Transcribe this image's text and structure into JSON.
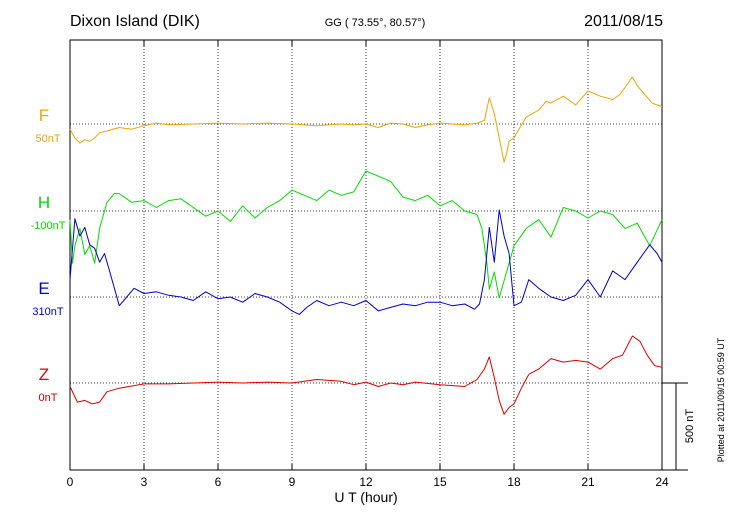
{
  "chart_data": {
    "type": "line",
    "title": "Dixon Island (DIK)",
    "subtitle": "GG ( 73.55°,  80.57°)",
    "date": "2011/08/15",
    "xlabel": "U T (hour)",
    "xlim": [
      0,
      24
    ],
    "xticks": [
      "0",
      "3",
      "6",
      "9",
      "12",
      "15",
      "18",
      "21",
      "24"
    ],
    "grid": true,
    "scale_bar_label": "500 nT",
    "scale_bar_nT": 500,
    "plotted_note": "Plotted at 2011/09/15 00:59 UT",
    "series": [
      {
        "name": "F",
        "baseline_label": "50nT",
        "color": "#f0a500",
        "x": [
          0,
          0.2,
          0.4,
          0.6,
          0.8,
          1.0,
          1.2,
          1.5,
          2.0,
          2.5,
          3.0,
          3.5,
          4.0,
          5.0,
          6.0,
          7.0,
          8.0,
          9.0,
          10.0,
          11.0,
          11.5,
          12.0,
          12.5,
          13.0,
          13.5,
          14.0,
          14.5,
          15.0,
          15.5,
          16.0,
          16.5,
          16.8,
          17.0,
          17.2,
          17.4,
          17.5,
          17.6,
          17.7,
          17.8,
          18.0,
          18.2,
          18.5,
          19.0,
          19.3,
          19.5,
          20.0,
          20.5,
          21.0,
          21.5,
          22.0,
          22.3,
          22.6,
          22.8,
          23.0,
          23.3,
          23.6,
          24.0
        ],
        "y": [
          -30,
          -80,
          -110,
          -90,
          -100,
          -80,
          -50,
          -40,
          -20,
          -30,
          -10,
          5,
          -5,
          0,
          5,
          0,
          5,
          0,
          -10,
          0,
          -5,
          0,
          -20,
          5,
          0,
          -20,
          -5,
          5,
          0,
          -5,
          5,
          20,
          150,
          60,
          -80,
          -150,
          -220,
          -170,
          -100,
          -80,
          -30,
          40,
          80,
          130,
          120,
          160,
          110,
          190,
          160,
          140,
          170,
          230,
          270,
          220,
          170,
          120,
          100
        ]
      },
      {
        "name": "H",
        "baseline_label": "-100nT",
        "color": "#00dd00",
        "x": [
          0,
          0.1,
          0.2,
          0.4,
          0.6,
          0.8,
          1.0,
          1.2,
          1.5,
          1.8,
          2.0,
          2.5,
          3.0,
          3.5,
          4.0,
          4.5,
          5.0,
          5.5,
          6.0,
          6.5,
          7.0,
          7.5,
          8.0,
          8.5,
          9.0,
          9.5,
          10.0,
          10.5,
          11.0,
          11.5,
          12.0,
          12.5,
          13.0,
          13.5,
          14.0,
          14.5,
          15.0,
          15.5,
          16.0,
          16.5,
          16.7,
          16.9,
          17.0,
          17.2,
          17.4,
          17.6,
          17.8,
          18.0,
          18.5,
          19.0,
          19.5,
          20.0,
          20.5,
          21.0,
          21.5,
          22.0,
          22.5,
          23.0,
          23.5,
          24.0
        ],
        "y": [
          -50,
          -300,
          -200,
          -100,
          -250,
          -200,
          -300,
          -100,
          50,
          100,
          100,
          50,
          60,
          20,
          60,
          70,
          20,
          -30,
          0,
          -60,
          30,
          -40,
          20,
          60,
          120,
          90,
          60,
          120,
          90,
          110,
          230,
          200,
          170,
          80,
          60,
          90,
          30,
          60,
          0,
          -20,
          -100,
          -300,
          -450,
          -350,
          -500,
          -400,
          -300,
          -200,
          -100,
          -50,
          -150,
          20,
          0,
          -40,
          0,
          -20,
          -100,
          -70,
          -200,
          -50
        ]
      },
      {
        "name": "E",
        "baseline_label": "310nT",
        "color": "#0000cc",
        "x": [
          0,
          0.2,
          0.4,
          0.6,
          0.8,
          1.0,
          1.2,
          1.4,
          1.6,
          1.8,
          2.0,
          2.3,
          2.6,
          3.0,
          3.5,
          4.0,
          4.5,
          5.0,
          5.5,
          6.0,
          6.5,
          7.0,
          7.5,
          8.0,
          8.5,
          9.0,
          9.3,
          9.6,
          10.0,
          10.5,
          11.0,
          11.5,
          12.0,
          12.5,
          13.0,
          13.5,
          14.0,
          14.5,
          15.0,
          15.5,
          16.0,
          16.4,
          16.6,
          16.8,
          17.0,
          17.2,
          17.4,
          17.6,
          17.8,
          18.0,
          18.3,
          18.6,
          19.0,
          19.5,
          20.0,
          20.5,
          21.0,
          21.5,
          22.0,
          22.5,
          23.0,
          23.5,
          23.8,
          24.0
        ],
        "y": [
          100,
          450,
          350,
          400,
          300,
          280,
          200,
          250,
          150,
          50,
          -50,
          0,
          50,
          20,
          30,
          10,
          0,
          -20,
          30,
          -10,
          0,
          -30,
          20,
          0,
          -30,
          -80,
          -100,
          -60,
          -20,
          -50,
          -30,
          -50,
          -20,
          -80,
          -60,
          -40,
          -50,
          -30,
          -30,
          -50,
          -40,
          -70,
          -40,
          100,
          400,
          200,
          500,
          350,
          250,
          -50,
          -30,
          100,
          50,
          0,
          -20,
          10,
          100,
          0,
          150,
          100,
          200,
          300,
          250,
          200
        ]
      },
      {
        "name": "Z",
        "baseline_label": "0nT",
        "color": "#dd0000",
        "x": [
          0,
          0.3,
          0.6,
          0.9,
          1.2,
          1.5,
          2.0,
          3.0,
          4.0,
          5.0,
          6.0,
          7.0,
          8.0,
          9.0,
          10.0,
          11.0,
          11.5,
          12.0,
          12.5,
          13.0,
          13.5,
          14.0,
          15.0,
          16.0,
          16.5,
          16.8,
          17.0,
          17.2,
          17.4,
          17.6,
          17.8,
          18.0,
          18.3,
          18.6,
          19.0,
          19.5,
          20.0,
          20.5,
          21.0,
          21.5,
          22.0,
          22.4,
          22.8,
          23.1,
          23.4,
          23.7,
          24.0
        ],
        "y": [
          -20,
          -110,
          -100,
          -120,
          -110,
          -50,
          -30,
          -5,
          -5,
          0,
          5,
          0,
          5,
          0,
          20,
          10,
          -10,
          5,
          -20,
          0,
          -10,
          5,
          -10,
          -20,
          20,
          80,
          150,
          30,
          -100,
          -180,
          -140,
          -120,
          -30,
          50,
          80,
          140,
          120,
          130,
          120,
          80,
          140,
          160,
          270,
          240,
          160,
          100,
          90
        ]
      }
    ]
  }
}
